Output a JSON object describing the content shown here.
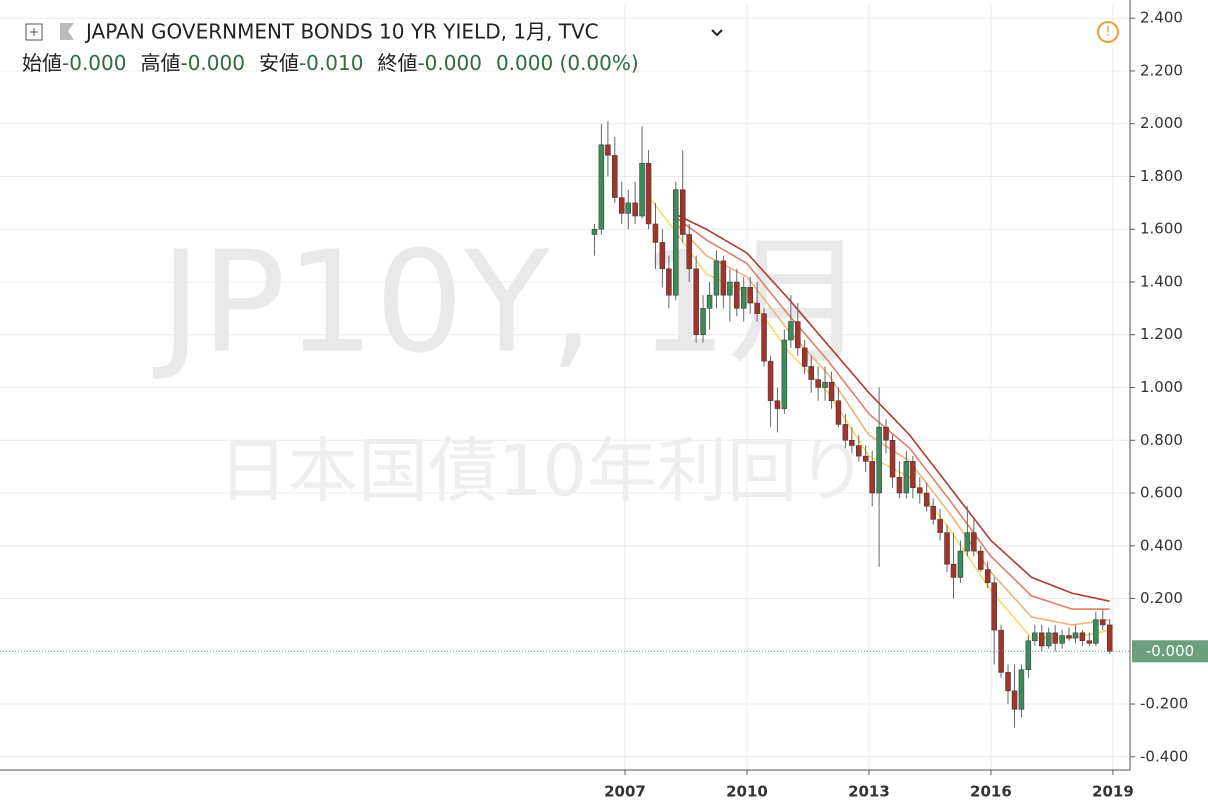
{
  "chart_data": {
    "type": "candlestick",
    "title": "JAPAN GOVERNMENT BONDS 10 YR YIELD, 1月, TVC",
    "ohlc_legend": [
      {
        "label": "始値",
        "value": "-0.000"
      },
      {
        "label": "高値",
        "value": "-0.000"
      },
      {
        "label": "安値",
        "value": "-0.010"
      },
      {
        "label": "終値",
        "value": "-0.000"
      }
    ],
    "change": "0.000 (0.00%)",
    "watermark": [
      "JP10Y, 1月",
      "日本国債10年利回り"
    ],
    "price_label": "-0.000",
    "up_color": "#3d8a5a",
    "down_color": "#a4332a",
    "xlim": [
      1991.63,
      2019.42
    ],
    "xticks": [
      2007,
      2010,
      2013,
      2016,
      2019
    ],
    "ylim": [
      -0.45,
      2.45
    ],
    "yticks": [
      {
        "value": 2.4,
        "label": "2.400"
      },
      {
        "value": 2.2,
        "label": "2.200"
      },
      {
        "value": 2.0,
        "label": "2.000"
      },
      {
        "value": 1.8,
        "label": "1.800"
      },
      {
        "value": 1.6,
        "label": "1.600"
      },
      {
        "value": 1.4,
        "label": "1.400"
      },
      {
        "value": 1.2,
        "label": "1.200"
      },
      {
        "value": 1.0,
        "label": "1.000"
      },
      {
        "value": 0.8,
        "label": "0.800"
      },
      {
        "value": 0.6,
        "label": "0.600"
      },
      {
        "value": 0.4,
        "label": "0.400"
      },
      {
        "value": 0.2,
        "label": "0.200"
      },
      {
        "value": -0.2,
        "label": "-0.200"
      },
      {
        "value": -0.4,
        "label": "-0.400"
      }
    ],
    "grid": true,
    "x": [
      2006.25,
      2006.42,
      2006.58,
      2006.75,
      2006.92,
      2007.08,
      2007.25,
      2007.42,
      2007.58,
      2007.75,
      2007.92,
      2008.08,
      2008.25,
      2008.42,
      2008.58,
      2008.75,
      2008.92,
      2009.08,
      2009.25,
      2009.42,
      2009.58,
      2009.75,
      2009.92,
      2010.08,
      2010.25,
      2010.42,
      2010.58,
      2010.75,
      2010.92,
      2011.08,
      2011.25,
      2011.42,
      2011.58,
      2011.75,
      2011.92,
      2012.08,
      2012.25,
      2012.42,
      2012.58,
      2012.75,
      2012.92,
      2013.08,
      2013.25,
      2013.42,
      2013.58,
      2013.75,
      2013.92,
      2014.08,
      2014.25,
      2014.42,
      2014.58,
      2014.75,
      2014.92,
      2015.08,
      2015.25,
      2015.42,
      2015.58,
      2015.75,
      2015.92,
      2016.08,
      2016.25,
      2016.42,
      2016.58,
      2016.75,
      2016.92,
      2017.08,
      2017.25,
      2017.42,
      2017.58,
      2017.75,
      2017.92,
      2018.08,
      2018.25,
      2018.42,
      2018.58,
      2018.75,
      2018.92
    ],
    "open": [
      1.58,
      1.6,
      1.92,
      1.88,
      1.72,
      1.66,
      1.7,
      1.65,
      1.85,
      1.62,
      1.55,
      1.45,
      1.35,
      1.75,
      1.58,
      1.45,
      1.2,
      1.3,
      1.35,
      1.48,
      1.35,
      1.4,
      1.3,
      1.38,
      1.32,
      1.28,
      1.1,
      0.95,
      0.92,
      1.18,
      1.25,
      1.15,
      1.08,
      1.03,
      1.0,
      1.02,
      0.95,
      0.86,
      0.8,
      0.78,
      0.74,
      0.72,
      0.6,
      0.85,
      0.8,
      0.66,
      0.6,
      0.72,
      0.62,
      0.6,
      0.55,
      0.5,
      0.45,
      0.33,
      0.28,
      0.38,
      0.45,
      0.38,
      0.31,
      0.26,
      0.08,
      -0.08,
      -0.15,
      -0.22,
      -0.07,
      0.04,
      0.07,
      0.02,
      0.07,
      0.03,
      0.06,
      0.05,
      0.07,
      0.04,
      0.03,
      0.12,
      0.1
    ],
    "high": [
      1.62,
      2.0,
      2.01,
      1.95,
      1.78,
      1.75,
      1.78,
      1.99,
      1.9,
      1.7,
      1.6,
      1.5,
      1.78,
      1.9,
      1.62,
      1.5,
      1.35,
      1.4,
      1.52,
      1.5,
      1.45,
      1.45,
      1.42,
      1.42,
      1.4,
      1.3,
      1.12,
      1.0,
      1.22,
      1.35,
      1.32,
      1.18,
      1.12,
      1.08,
      1.08,
      1.06,
      1.0,
      0.9,
      0.85,
      0.82,
      0.78,
      0.76,
      1.0,
      0.88,
      0.82,
      0.72,
      0.76,
      0.74,
      0.66,
      0.64,
      0.58,
      0.54,
      0.48,
      0.45,
      0.42,
      0.55,
      0.5,
      0.4,
      0.34,
      0.28,
      0.1,
      -0.05,
      -0.05,
      -0.05,
      0.06,
      0.1,
      0.1,
      0.09,
      0.1,
      0.08,
      0.09,
      0.1,
      0.08,
      0.07,
      0.15,
      0.16,
      0.12
    ],
    "low": [
      1.5,
      1.58,
      1.8,
      1.7,
      1.62,
      1.6,
      1.62,
      1.64,
      1.6,
      1.45,
      1.38,
      1.3,
      1.33,
      1.55,
      1.4,
      1.17,
      1.17,
      1.22,
      1.3,
      1.3,
      1.25,
      1.27,
      1.25,
      1.28,
      1.25,
      1.08,
      0.85,
      0.83,
      0.9,
      1.15,
      1.12,
      1.05,
      0.98,
      0.95,
      0.95,
      0.92,
      0.85,
      0.77,
      0.75,
      0.72,
      0.68,
      0.55,
      0.32,
      0.75,
      0.62,
      0.58,
      0.58,
      0.58,
      0.56,
      0.53,
      0.48,
      0.42,
      0.3,
      0.2,
      0.26,
      0.36,
      0.36,
      0.3,
      0.24,
      -0.05,
      -0.1,
      -0.2,
      -0.29,
      -0.25,
      -0.1,
      0.02,
      0.0,
      0.01,
      0.0,
      0.01,
      0.04,
      0.03,
      0.02,
      0.02,
      0.02,
      0.08,
      -0.01
    ],
    "close": [
      1.6,
      1.92,
      1.88,
      1.72,
      1.66,
      1.7,
      1.65,
      1.85,
      1.62,
      1.55,
      1.45,
      1.35,
      1.75,
      1.58,
      1.45,
      1.2,
      1.3,
      1.35,
      1.48,
      1.35,
      1.4,
      1.3,
      1.38,
      1.32,
      1.28,
      1.1,
      0.95,
      0.92,
      1.18,
      1.25,
      1.15,
      1.08,
      1.03,
      1.0,
      1.02,
      0.95,
      0.86,
      0.8,
      0.78,
      0.74,
      0.72,
      0.6,
      0.85,
      0.8,
      0.66,
      0.6,
      0.72,
      0.62,
      0.6,
      0.55,
      0.5,
      0.45,
      0.33,
      0.28,
      0.38,
      0.45,
      0.38,
      0.31,
      0.26,
      0.08,
      -0.08,
      -0.15,
      -0.22,
      -0.07,
      0.04,
      0.07,
      0.02,
      0.07,
      0.03,
      0.06,
      0.05,
      0.07,
      0.04,
      0.03,
      0.12,
      0.1,
      0.0
    ],
    "ma_x": [
      2007.6,
      2008.2,
      2009,
      2010,
      2011,
      2012,
      2013,
      2014,
      2015,
      2016,
      2017,
      2018,
      2018.92
    ],
    "ma_series": [
      {
        "color": "#f2dc6a",
        "values": [
          1.72,
          1.6,
          1.43,
          1.36,
          1.14,
          0.98,
          0.74,
          0.66,
          0.46,
          0.23,
          0.05,
          0.05,
          0.08
        ]
      },
      {
        "color": "#efb37a",
        "values": [
          null,
          1.63,
          1.5,
          1.42,
          1.22,
          1.05,
          0.82,
          0.72,
          0.52,
          0.3,
          0.13,
          0.1,
          0.12
        ]
      },
      {
        "color": "#e27f66",
        "values": [
          null,
          1.65,
          1.56,
          1.47,
          1.28,
          1.1,
          0.9,
          0.77,
          0.57,
          0.36,
          0.21,
          0.16,
          0.16
        ]
      },
      {
        "color": "#b43b2e",
        "values": [
          null,
          1.66,
          1.6,
          1.51,
          1.34,
          1.16,
          0.98,
          0.82,
          0.62,
          0.42,
          0.28,
          0.22,
          0.19
        ]
      }
    ]
  }
}
